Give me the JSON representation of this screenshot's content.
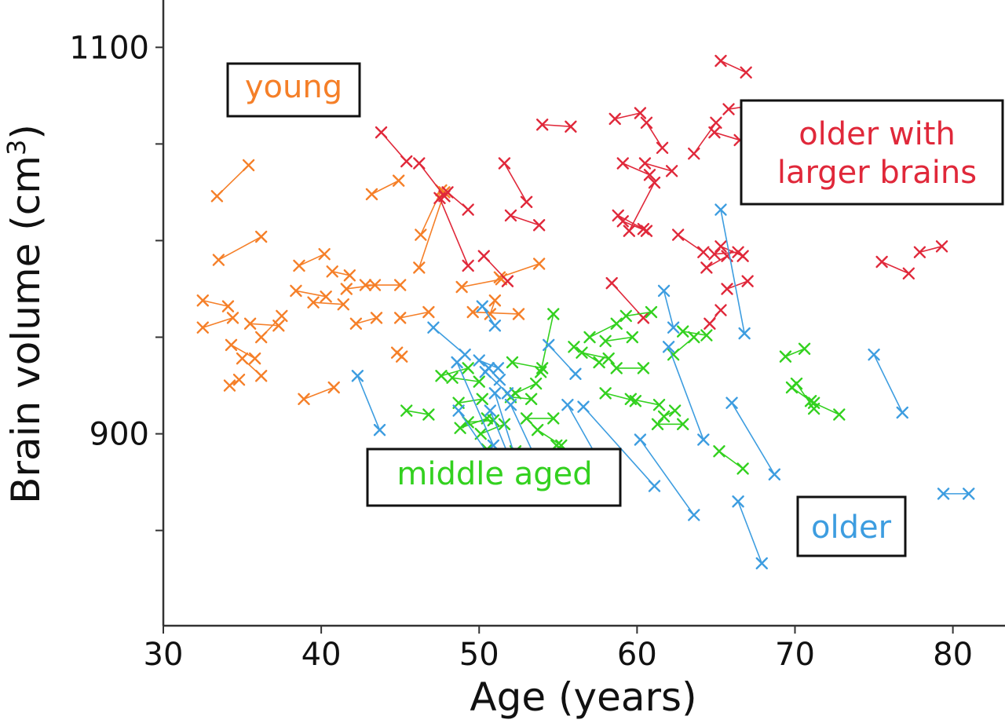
{
  "chart_data": {
    "type": "scatter",
    "title": "",
    "xlabel": "Age (years)",
    "ylabel_main": "Brain volume (cm",
    "ylabel_sup": "3",
    "ylabel_close": ")",
    "xlim": [
      30,
      83.3
    ],
    "ylim": [
      800.7,
      1124.5
    ],
    "xticks": [
      30,
      40,
      50,
      60,
      70,
      80
    ],
    "yticks": [
      850,
      900,
      950,
      1000,
      1050,
      1100
    ],
    "ytick_labels": [
      "",
      "900",
      "",
      "",
      "",
      "1100"
    ],
    "grid": false,
    "legend": "none",
    "annotations": [
      {
        "text_lines": [
          "young"
        ],
        "color": "#f57f28",
        "position": "upper-left"
      },
      {
        "text_lines": [
          "older with",
          "larger brains"
        ],
        "color": "#e0283a",
        "position": "upper-right"
      },
      {
        "text_lines": [
          "middle aged"
        ],
        "color": "#33d11f",
        "position": "lower-center"
      },
      {
        "text_lines": [
          "older"
        ],
        "color": "#3d9de0",
        "position": "lower-right"
      }
    ],
    "series": [
      {
        "color": "#f57f28",
        "pairs": [
          [
            [
              32.5,
              969
            ],
            [
              34.1,
              966
            ]
          ],
          [
            [
              33.4,
              1023
            ],
            [
              35.4,
              1039
            ]
          ],
          [
            [
              33.5,
              990
            ],
            [
              36.2,
              1002
            ]
          ],
          [
            [
              32.5,
              955
            ],
            [
              34.4,
              960
            ]
          ],
          [
            [
              34.3,
              946
            ],
            [
              35.8,
              939
            ]
          ],
          [
            [
              35.0,
              939
            ],
            [
              36.2,
              930
            ]
          ],
          [
            [
              35.5,
              957
            ],
            [
              37.3,
              956
            ]
          ],
          [
            [
              36.2,
              950
            ],
            [
              37.5,
              961
            ]
          ],
          [
            [
              38.4,
              974
            ],
            [
              40.3,
              971
            ]
          ],
          [
            [
              38.6,
              987
            ],
            [
              40.2,
              993
            ]
          ],
          [
            [
              39.5,
              968
            ],
            [
              41.4,
              967
            ]
          ],
          [
            [
              40.7,
              984
            ],
            [
              41.8,
              982
            ]
          ],
          [
            [
              41.6,
              975
            ],
            [
              43.4,
              977
            ]
          ],
          [
            [
              42.2,
              957
            ],
            [
              43.5,
              960
            ]
          ],
          [
            [
              42.8,
              977
            ],
            [
              45.0,
              977
            ]
          ],
          [
            [
              43.2,
              1024
            ],
            [
              44.9,
              1031
            ]
          ],
          [
            [
              44.8,
              942
            ],
            [
              45.1,
              940
            ]
          ],
          [
            [
              45.0,
              960
            ],
            [
              46.8,
              963
            ]
          ],
          [
            [
              38.9,
              918
            ],
            [
              40.8,
              924
            ]
          ],
          [
            [
              46.2,
              986
            ],
            [
              47.8,
              1025
            ]
          ],
          [
            [
              47.6,
              1026
            ],
            [
              46.3,
              1003
            ]
          ],
          [
            [
              48.9,
              976
            ],
            [
              51.4,
              980
            ]
          ],
          [
            [
              49.6,
              963
            ],
            [
              52.5,
              962
            ]
          ],
          [
            [
              50.7,
              962
            ],
            [
              51.0,
              969
            ]
          ],
          [
            [
              51.3,
              981
            ],
            [
              53.8,
              988
            ]
          ],
          [
            [
              34.2,
              925
            ],
            [
              34.8,
              928
            ]
          ]
        ]
      },
      {
        "color": "#e0283a",
        "pairs": [
          [
            [
              43.8,
              1056
            ],
            [
              45.4,
              1041
            ]
          ],
          [
            [
              46.2,
              1040
            ],
            [
              47.8,
              1023
            ]
          ],
          [
            [
              48.0,
              1025
            ],
            [
              49.3,
              1016
            ]
          ],
          [
            [
              47.5,
              1022
            ],
            [
              49.3,
              987
            ]
          ],
          [
            [
              50.3,
              992
            ],
            [
              51.8,
              979
            ]
          ],
          [
            [
              51.6,
              1040
            ],
            [
              53.0,
              1020
            ]
          ],
          [
            [
              52.0,
              1013
            ],
            [
              53.8,
              1008
            ]
          ],
          [
            [
              54.0,
              1060
            ],
            [
              55.8,
              1059
            ]
          ],
          [
            [
              58.6,
              1063
            ],
            [
              60.2,
              1066
            ]
          ],
          [
            [
              59.1,
              1040
            ],
            [
              60.8,
              1034
            ]
          ],
          [
            [
              58.8,
              1013
            ],
            [
              60.4,
              1006
            ]
          ],
          [
            [
              59.1,
              1010
            ],
            [
              60.6,
              1005
            ]
          ],
          [
            [
              60.5,
              1040
            ],
            [
              62.2,
              1036
            ]
          ],
          [
            [
              59.5,
              1005
            ],
            [
              61.1,
              1030
            ]
          ],
          [
            [
              61.6,
              1048
            ],
            [
              60.6,
              1061
            ]
          ],
          [
            [
              58.4,
              978
            ],
            [
              60.4,
              960
            ]
          ],
          [
            [
              62.6,
              1003
            ],
            [
              64.2,
              994
            ]
          ],
          [
            [
              64.4,
              986
            ],
            [
              65.7,
              992
            ]
          ],
          [
            [
              64.9,
              993
            ],
            [
              66.4,
              994
            ]
          ],
          [
            [
              64.6,
              957
            ],
            [
              65.3,
              964
            ]
          ],
          [
            [
              65.3,
              1093
            ],
            [
              66.9,
              1087
            ]
          ],
          [
            [
              65.8,
              1068
            ],
            [
              67.4,
              1070
            ]
          ],
          [
            [
              64.9,
              1056
            ],
            [
              66.5,
              1052
            ]
          ],
          [
            [
              65.7,
              975
            ],
            [
              67.0,
              979
            ]
          ],
          [
            [
              75.5,
              989
            ],
            [
              77.2,
              983
            ]
          ],
          [
            [
              77.9,
              994
            ],
            [
              79.3,
              997
            ]
          ],
          [
            [
              66.7,
              992
            ],
            [
              65.3,
              997
            ]
          ],
          [
            [
              63.6,
              1045
            ],
            [
              65.0,
              1061
            ]
          ]
        ]
      },
      {
        "color": "#33d11f",
        "pairs": [
          [
            [
              45.4,
              912
            ],
            [
              46.8,
              910
            ]
          ],
          [
            [
              47.6,
              930
            ],
            [
              49.3,
              934
            ]
          ],
          [
            [
              48.3,
              929
            ],
            [
              50.0,
              927
            ]
          ],
          [
            [
              48.7,
              916
            ],
            [
              50.2,
              918
            ]
          ],
          [
            [
              48.8,
              903
            ],
            [
              50.5,
              908
            ]
          ],
          [
            [
              49.3,
              906
            ],
            [
              50.9,
              907
            ]
          ],
          [
            [
              50.1,
              900
            ],
            [
              51.6,
              905
            ]
          ],
          [
            [
              50.2,
              883
            ],
            [
              52.0,
              882
            ]
          ],
          [
            [
              50.5,
              892
            ],
            [
              52.3,
              891
            ]
          ],
          [
            [
              51.4,
              889
            ],
            [
              52.2,
              883
            ]
          ],
          [
            [
              52.1,
              937
            ],
            [
              54.0,
              934
            ]
          ],
          [
            [
              52.0,
              919
            ],
            [
              53.3,
              918
            ]
          ],
          [
            [
              52.3,
              921
            ],
            [
              53.6,
              926
            ]
          ],
          [
            [
              53.0,
              908
            ],
            [
              54.7,
              908
            ]
          ],
          [
            [
              52.9,
              883
            ],
            [
              54.3,
              888
            ]
          ],
          [
            [
              54.7,
              962
            ],
            [
              53.9,
              932
            ]
          ],
          [
            [
              53.7,
              902
            ],
            [
              55.2,
              894
            ]
          ],
          [
            [
              54.9,
              894
            ],
            [
              56.4,
              888
            ]
          ],
          [
            [
              55.4,
              888
            ],
            [
              57.2,
              881
            ]
          ],
          [
            [
              56.0,
              945
            ],
            [
              57.6,
              937
            ]
          ],
          [
            [
              57.0,
              950
            ],
            [
              58.7,
              957
            ]
          ],
          [
            [
              56.5,
              942
            ],
            [
              58.2,
              939
            ]
          ],
          [
            [
              58.0,
              948
            ],
            [
              59.7,
              950
            ]
          ],
          [
            [
              58.7,
              934
            ],
            [
              60.4,
              934
            ]
          ],
          [
            [
              59.3,
              961
            ],
            [
              60.9,
              963
            ]
          ],
          [
            [
              58.0,
              921
            ],
            [
              59.9,
              917
            ]
          ],
          [
            [
              59.6,
              918
            ],
            [
              61.4,
              915
            ]
          ],
          [
            [
              61.7,
              909
            ],
            [
              62.4,
              912
            ]
          ],
          [
            [
              61.3,
              905
            ],
            [
              62.9,
              905
            ]
          ],
          [
            [
              62.9,
              953
            ],
            [
              64.4,
              951
            ]
          ],
          [
            [
              62.3,
              941
            ],
            [
              63.6,
              950
            ]
          ],
          [
            [
              65.2,
              891
            ],
            [
              66.7,
              882
            ]
          ],
          [
            [
              69.4,
              940
            ],
            [
              70.6,
              944
            ]
          ],
          [
            [
              69.8,
              924
            ],
            [
              71.0,
              917
            ]
          ],
          [
            [
              70.1,
              926
            ],
            [
              71.2,
              913
            ]
          ],
          [
            [
              71.2,
              916
            ],
            [
              72.8,
              910
            ]
          ]
        ]
      },
      {
        "color": "#3d9de0",
        "pairs": [
          [
            [
              42.3,
              930
            ],
            [
              43.7,
              902
            ]
          ],
          [
            [
              47.1,
              955
            ],
            [
              49.1,
              941
            ]
          ],
          [
            [
              48.6,
              937
            ],
            [
              50.9,
              894
            ]
          ],
          [
            [
              48.7,
              912
            ],
            [
              52.1,
              871
            ]
          ],
          [
            [
              50.0,
              938
            ],
            [
              51.2,
              934
            ]
          ],
          [
            [
              50.2,
              966
            ],
            [
              51.0,
              956
            ]
          ],
          [
            [
              50.4,
              932
            ],
            [
              51.8,
              921
            ]
          ],
          [
            [
              50.6,
              934
            ],
            [
              51.3,
              928
            ]
          ],
          [
            [
              51.0,
              921
            ],
            [
              52.4,
              885
            ]
          ],
          [
            [
              50.7,
              912
            ],
            [
              52.0,
              886
            ]
          ],
          [
            [
              52.0,
              915
            ],
            [
              53.6,
              887
            ]
          ],
          [
            [
              54.4,
              946
            ],
            [
              56.1,
              931
            ]
          ],
          [
            [
              55.6,
              915
            ],
            [
              57.6,
              886
            ]
          ],
          [
            [
              56.6,
              914
            ],
            [
              61.1,
              873
            ]
          ],
          [
            [
              60.2,
              897
            ],
            [
              63.6,
              858
            ]
          ],
          [
            [
              61.7,
              974
            ],
            [
              62.3,
              955
            ]
          ],
          [
            [
              62.0,
              945
            ],
            [
              64.2,
              897
            ]
          ],
          [
            [
              65.3,
              1016
            ],
            [
              66.8,
              952
            ]
          ],
          [
            [
              66.0,
              916
            ],
            [
              68.7,
              879
            ]
          ],
          [
            [
              66.4,
              865
            ],
            [
              67.9,
              833
            ]
          ],
          [
            [
              75.0,
              941
            ],
            [
              76.8,
              911
            ]
          ],
          [
            [
              79.4,
              869
            ],
            [
              81.0,
              869
            ]
          ]
        ]
      }
    ]
  }
}
